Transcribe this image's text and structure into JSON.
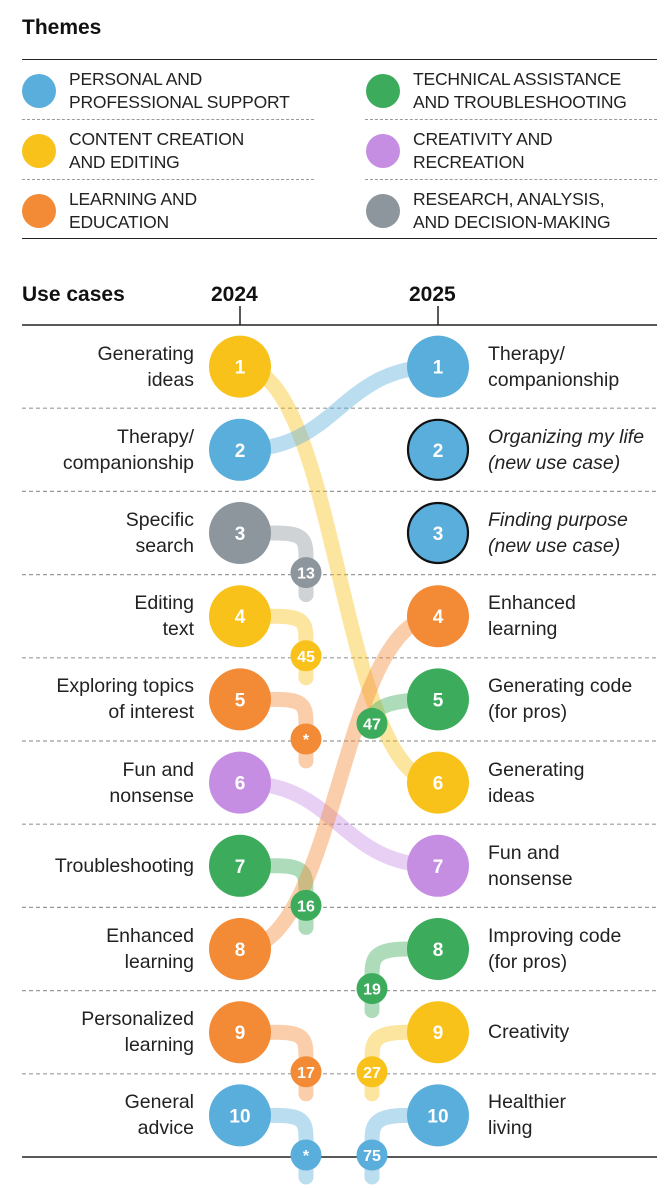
{
  "themes": {
    "title": "Themes",
    "items": [
      {
        "key": "personal",
        "label": "PERSONAL AND\nPROFESSIONAL SUPPORT",
        "color": "#5aaedb"
      },
      {
        "key": "technical",
        "label": "TECHNICAL ASSISTANCE\nAND TROUBLESHOOTING",
        "color": "#3dab5c"
      },
      {
        "key": "content",
        "label": "CONTENT CREATION\nAND EDITING",
        "color": "#f8c21b"
      },
      {
        "key": "creativity",
        "label": "CREATIVITY AND\nRECREATION",
        "color": "#c68ee3"
      },
      {
        "key": "learning",
        "label": "LEARNING AND\nEDUCATION",
        "color": "#f28a36"
      },
      {
        "key": "research",
        "label": "RESEARCH, ANALYSIS,\nAND DECISION-MAKING",
        "color": "#8c969c"
      }
    ]
  },
  "use_cases_header": "Use cases",
  "year_left": "2024",
  "year_right": "2025",
  "chart_data": {
    "type": "slope",
    "title": "Use cases",
    "years": [
      "2024",
      "2025"
    ],
    "left": [
      {
        "rank": 1,
        "label": "Generating\nideas",
        "theme": "content",
        "rank_2025": "6"
      },
      {
        "rank": 2,
        "label": "Therapy/\ncompanionship",
        "theme": "personal",
        "rank_2025": "1"
      },
      {
        "rank": 3,
        "label": "Specific\nsearch",
        "theme": "research",
        "rank_2025": "13"
      },
      {
        "rank": 4,
        "label": "Editing\ntext",
        "theme": "content",
        "rank_2025": "45"
      },
      {
        "rank": 5,
        "label": "Exploring topics\nof interest",
        "theme": "learning",
        "rank_2025": "*"
      },
      {
        "rank": 6,
        "label": "Fun and\nnonsense",
        "theme": "creativity",
        "rank_2025": "7"
      },
      {
        "rank": 7,
        "label": "Troubleshooting",
        "theme": "technical",
        "rank_2025": "16"
      },
      {
        "rank": 8,
        "label": "Enhanced\nlearning",
        "theme": "learning",
        "rank_2025": "4"
      },
      {
        "rank": 9,
        "label": "Personalized\nlearning",
        "theme": "learning",
        "rank_2025": "17"
      },
      {
        "rank": 10,
        "label": "General\nadvice",
        "theme": "personal",
        "rank_2025": "*"
      }
    ],
    "right": [
      {
        "rank": 1,
        "label": "Therapy/\ncompanionship",
        "theme": "personal",
        "italic": false,
        "outlined": false,
        "rank_2024": "2"
      },
      {
        "rank": 2,
        "label": "Organizing my life\n(new use case)",
        "theme": "personal",
        "italic": true,
        "outlined": true,
        "rank_2024": null
      },
      {
        "rank": 3,
        "label": "Finding purpose\n(new use case)",
        "theme": "personal",
        "italic": true,
        "outlined": true,
        "rank_2024": null
      },
      {
        "rank": 4,
        "label": "Enhanced\nlearning",
        "theme": "learning",
        "italic": false,
        "outlined": false,
        "rank_2024": "8"
      },
      {
        "rank": 5,
        "label": "Generating code\n(for pros)",
        "theme": "technical",
        "italic": false,
        "outlined": false,
        "rank_2024": "47"
      },
      {
        "rank": 6,
        "label": "Generating\nideas",
        "theme": "content",
        "italic": false,
        "outlined": false,
        "rank_2024": "1"
      },
      {
        "rank": 7,
        "label": "Fun and\nnonsense",
        "theme": "creativity",
        "italic": false,
        "outlined": false,
        "rank_2024": "6"
      },
      {
        "rank": 8,
        "label": "Improving code\n(for pros)",
        "theme": "technical",
        "italic": false,
        "outlined": false,
        "rank_2024": "19"
      },
      {
        "rank": 9,
        "label": "Creativity",
        "theme": "content",
        "italic": false,
        "outlined": false,
        "rank_2024": "27"
      },
      {
        "rank": 10,
        "label": "Healthier\nliving",
        "theme": "personal",
        "italic": false,
        "outlined": false,
        "rank_2024": "75"
      }
    ]
  }
}
